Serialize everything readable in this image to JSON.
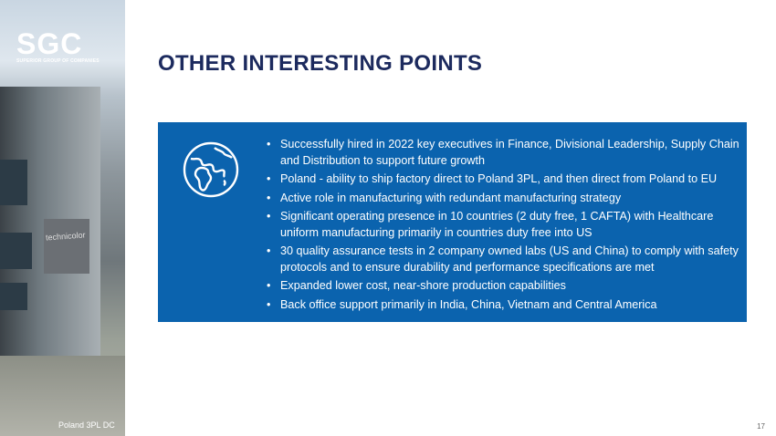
{
  "sidebar": {
    "logo_text": "SGC",
    "logo_subtitle": "SUPERIOR GROUP OF COMPANIES",
    "building_sign": "technicolor",
    "caption": "Poland 3PL DC"
  },
  "title": "OTHER INTERESTING POINTS",
  "panel": {
    "icon": "globe-icon",
    "color": "#0b63ae",
    "bullets": [
      "Successfully hired in 2022 key executives in Finance, Divisional Leadership, Supply Chain and Distribution to support future growth",
      "Poland - ability to ship factory direct to Poland 3PL, and then direct from Poland to EU",
      "Active role in manufacturing with redundant manufacturing strategy",
      "Significant operating presence in 10 countries (2 duty free, 1 CAFTA) with Healthcare uniform manufacturing primarily in countries duty free into US",
      "30 quality assurance tests in 2 company owned labs (US and China) to comply with safety protocols and to ensure durability and performance specifications are met",
      "Expanded lower cost, near-shore production capabilities",
      "Back office support primarily in India, China, Vietnam and Central America"
    ]
  },
  "page_number": "17"
}
